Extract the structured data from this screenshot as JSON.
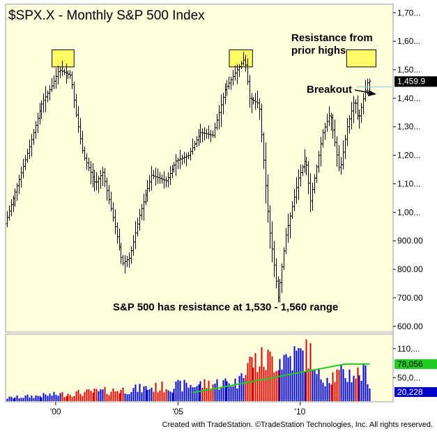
{
  "chart_data": {
    "type": "ohlc-bar",
    "title": "$SPX.X - Monthly  S&P 500 Index",
    "price_axis": {
      "ticks": [
        "1,70...",
        "1,60...",
        "1,50...",
        "1,40...",
        "1,30...",
        "1,20...",
        "1,10...",
        "1,00...",
        "900.00",
        "800.00",
        "700.00",
        "600.00"
      ],
      "tick_values": [
        1700,
        1600,
        1500,
        1400,
        1300,
        1200,
        1100,
        1000,
        900,
        800,
        700,
        600
      ],
      "ylim": [
        580,
        1730
      ],
      "last_price_label": "1,459.9",
      "last_price": 1459.9
    },
    "x_axis": {
      "ticks": [
        "'00",
        "'05",
        "'10"
      ],
      "tick_years": [
        2000,
        2005,
        2010
      ]
    },
    "price_anchors": [
      {
        "date": "1998.0",
        "price": 960
      },
      {
        "date": "1998.6",
        "price": 1120
      },
      {
        "date": "1999.0",
        "price": 1230
      },
      {
        "date": "1999.5",
        "price": 1380
      },
      {
        "date": "1999.9",
        "price": 1440
      },
      {
        "date": "2000.2",
        "price": 1500
      },
      {
        "date": "2000.7",
        "price": 1480
      },
      {
        "date": "2000.9",
        "price": 1350
      },
      {
        "date": "2001.2",
        "price": 1200
      },
      {
        "date": "2001.7",
        "price": 1100
      },
      {
        "date": "2002.0",
        "price": 1140
      },
      {
        "date": "2002.5",
        "price": 950
      },
      {
        "date": "2002.8",
        "price": 820
      },
      {
        "date": "2003.1",
        "price": 840
      },
      {
        "date": "2003.5",
        "price": 990
      },
      {
        "date": "2004.0",
        "price": 1130
      },
      {
        "date": "2004.6",
        "price": 1110
      },
      {
        "date": "2005.0",
        "price": 1180
      },
      {
        "date": "2005.5",
        "price": 1200
      },
      {
        "date": "2006.0",
        "price": 1280
      },
      {
        "date": "2006.5",
        "price": 1270
      },
      {
        "date": "2007.0",
        "price": 1430
      },
      {
        "date": "2007.5",
        "price": 1500
      },
      {
        "date": "2007.8",
        "price": 1540
      },
      {
        "date": "2008.0",
        "price": 1400
      },
      {
        "date": "2008.4",
        "price": 1380
      },
      {
        "date": "2008.8",
        "price": 950
      },
      {
        "date": "2009.17",
        "price": 700
      },
      {
        "date": "2009.5",
        "price": 920
      },
      {
        "date": "2010.0",
        "price": 1120
      },
      {
        "date": "2010.3",
        "price": 1190
      },
      {
        "date": "2010.5",
        "price": 1040
      },
      {
        "date": "2011.0",
        "price": 1280
      },
      {
        "date": "2011.3",
        "price": 1350
      },
      {
        "date": "2011.7",
        "price": 1140
      },
      {
        "date": "2012.0",
        "price": 1300
      },
      {
        "date": "2012.3",
        "price": 1400
      },
      {
        "date": "2012.45",
        "price": 1320
      },
      {
        "date": "2012.7",
        "price": 1410
      },
      {
        "date": "2012.85",
        "price": 1460
      }
    ],
    "resistance_zones": [
      {
        "date_start": "1999.85",
        "date_end": "2000.75",
        "price_low": 1510,
        "price_high": 1570
      },
      {
        "date_start": "2007.1",
        "date_end": "2008.05",
        "price_low": 1510,
        "price_high": 1570
      },
      {
        "date_start": "2011.9",
        "date_end": "2013.1",
        "price_low": 1510,
        "price_high": 1570
      }
    ],
    "annotations": {
      "resistance": "Resistance from\nprior highs",
      "breakout": "Breakout",
      "summary": "S&P 500 has resistance at 1,530 - 1,560 range"
    },
    "volume": {
      "ticks": [
        "110,...",
        "50,0..."
      ],
      "tick_values": [
        110000,
        50000
      ],
      "ylim": [
        0,
        140000
      ],
      "ma_label": "78,056",
      "ma_value": 78056,
      "last_label": "20,228",
      "last_value": 20228,
      "colors": {
        "up": "#0000cc",
        "down": "#dd0000",
        "ma": "#22cc22"
      }
    },
    "colors": {
      "price_bar": "#000000",
      "zone": "#fffe66",
      "breakout_line": "#7fd3f0",
      "last_price_bg": "#000000"
    }
  },
  "footer": "Created with TradeStation. ©TradeStation Technologies, Inc. All rights reserved."
}
